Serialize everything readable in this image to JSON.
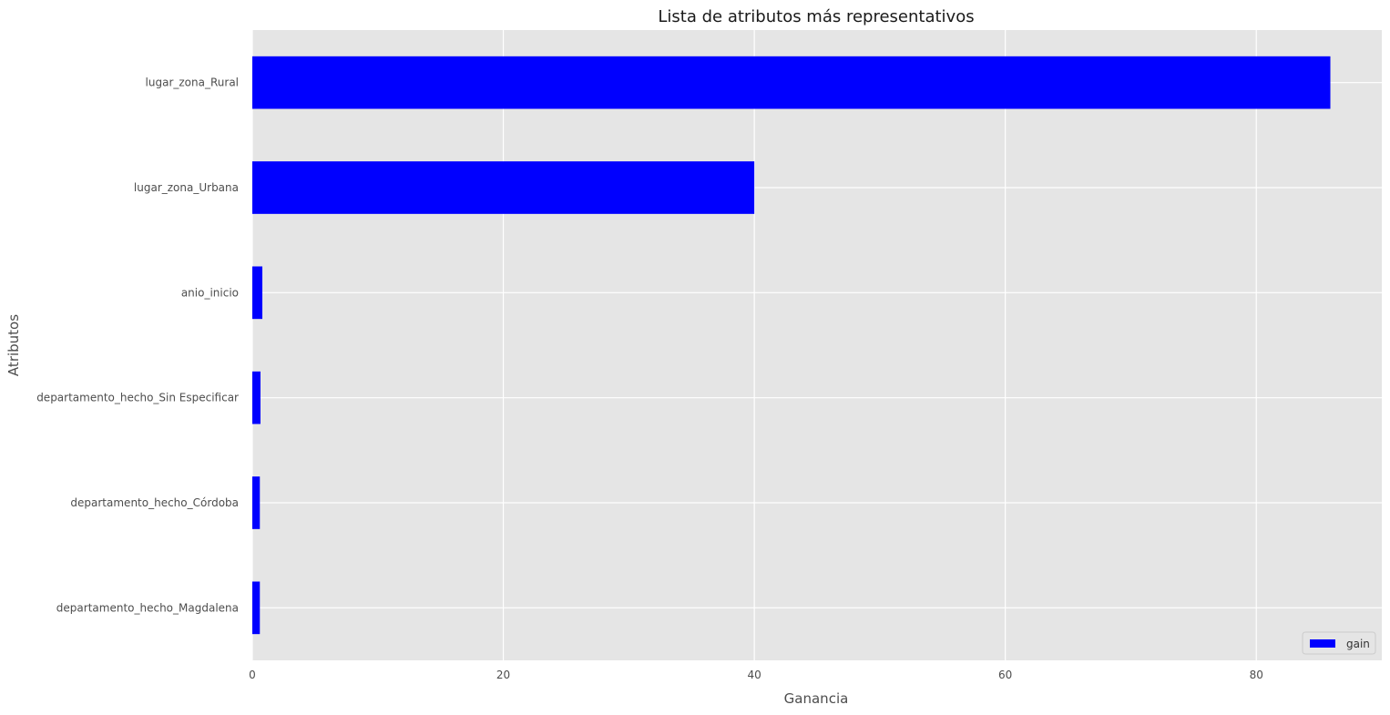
{
  "chart_data": {
    "type": "bar",
    "orientation": "horizontal",
    "title": "Lista de atributos más representativos",
    "xlabel": "Ganancia",
    "ylabel": "Atributos",
    "categories": [
      "lugar_zona_Rural",
      "lugar_zona_Urbana",
      "anio_inicio",
      "departamento_hecho_Sin Especificar",
      "departamento_hecho_Córdoba",
      "departamento_hecho_Magdalena"
    ],
    "series": [
      {
        "name": "gain",
        "values": [
          85.9,
          40.0,
          0.8,
          0.65,
          0.6,
          0.6
        ]
      }
    ],
    "xlim": [
      0,
      90
    ],
    "xticks": [
      0,
      20,
      40,
      60,
      80
    ],
    "xtick_labels": [
      "0",
      "20",
      "40",
      "60",
      "80"
    ],
    "grid": true,
    "legend_position": "bottom-right",
    "colors": {
      "bar": "#0000ff",
      "plot_background": "#e5e5e5",
      "grid": "#ffffff"
    }
  }
}
